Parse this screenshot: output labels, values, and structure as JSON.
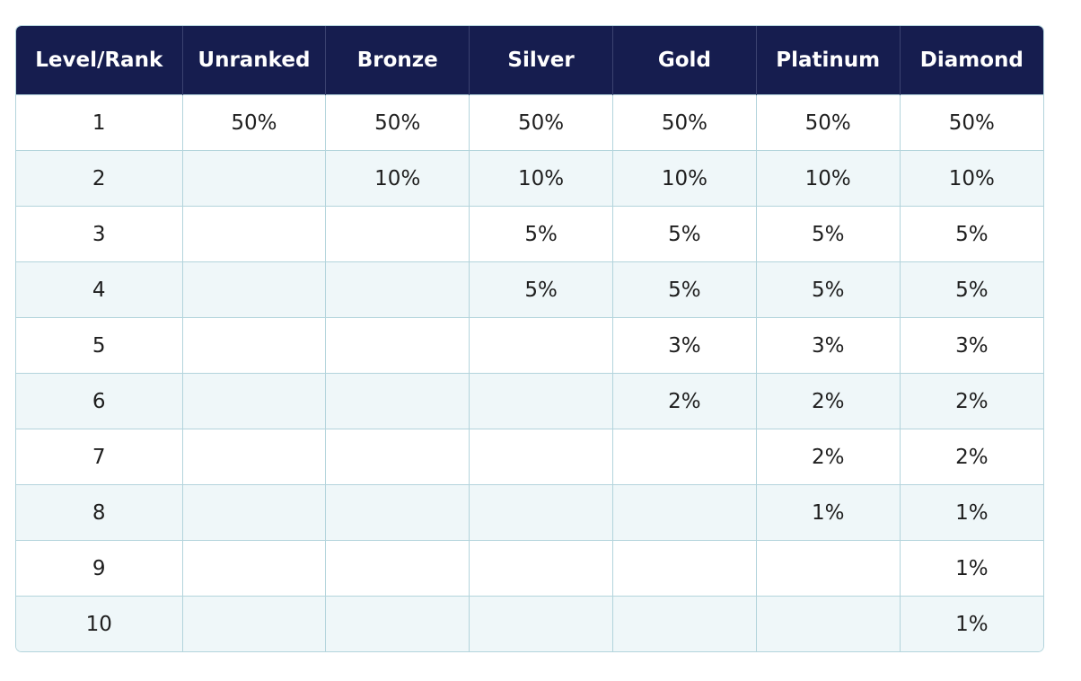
{
  "table": {
    "header": [
      "Level/Rank",
      "Unranked",
      "Bronze",
      "Silver",
      "Gold",
      "Platinum",
      "Diamond"
    ],
    "rows": [
      [
        "1",
        "50%",
        "50%",
        "50%",
        "50%",
        "50%",
        "50%"
      ],
      [
        "2",
        null,
        "10%",
        "10%",
        "10%",
        "10%",
        "10%"
      ],
      [
        "3",
        null,
        null,
        "5%",
        "5%",
        "5%",
        "5%"
      ],
      [
        "4",
        null,
        null,
        "5%",
        "5%",
        "5%",
        "5%"
      ],
      [
        "5",
        null,
        null,
        null,
        "3%",
        "3%",
        "3%"
      ],
      [
        "6",
        null,
        null,
        null,
        "2%",
        "2%",
        "2%"
      ],
      [
        "7",
        null,
        null,
        null,
        null,
        "2%",
        "2%"
      ],
      [
        "8",
        null,
        null,
        null,
        null,
        "1%",
        "1%"
      ],
      [
        "9",
        null,
        null,
        null,
        null,
        null,
        "1%"
      ],
      [
        "10",
        null,
        null,
        null,
        null,
        null,
        "1%"
      ]
    ]
  }
}
